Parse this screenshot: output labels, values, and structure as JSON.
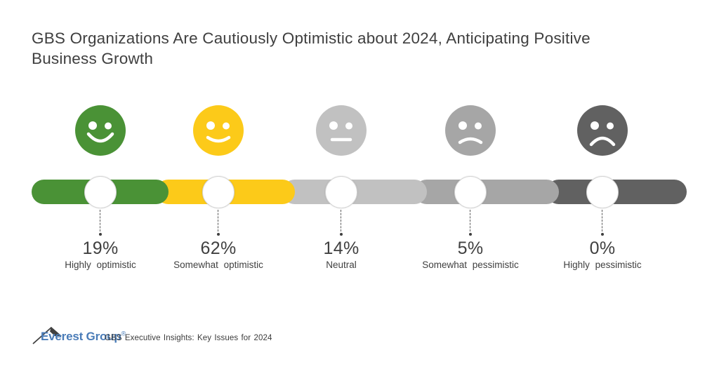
{
  "title": "GBS Organizations Are Cautiously Optimistic about 2024, Anticipating Positive Business Growth",
  "chart_data": {
    "type": "bar",
    "title": "GBS Organizations Are Cautiously Optimistic about 2024, Anticipating Positive Business Growth",
    "categories": [
      "Highly optimistic",
      "Somewhat optimistic",
      "Neutral",
      "Somewhat pessimistic",
      "Highly pessimistic"
    ],
    "values": [
      19,
      62,
      14,
      5,
      0
    ],
    "unit": "%",
    "legend": "none",
    "layout_hint": "five equal sentiment segments on a rounded horizontal scale, face icon above each segment, white marker circle on bar with dashed leader to value",
    "items": [
      {
        "label": "Highly optimistic",
        "value": 19,
        "display": "19%",
        "color": "#4a9236",
        "mouth": "big-smile",
        "icon": "big-smile-face-icon"
      },
      {
        "label": "Somewhat optimistic",
        "value": 62,
        "display": "62%",
        "color": "#fcca19",
        "mouth": "smile",
        "icon": "smile-face-icon"
      },
      {
        "label": "Neutral",
        "value": 14,
        "display": "14%",
        "color": "#c1c1c1",
        "mouth": "flat",
        "icon": "neutral-face-icon"
      },
      {
        "label": "Somewhat pessimistic",
        "value": 5,
        "display": "5%",
        "color": "#a6a6a6",
        "mouth": "frown",
        "icon": "frown-face-icon"
      },
      {
        "label": "Highly pessimistic",
        "value": 0,
        "display": "0%",
        "color": "#616161",
        "mouth": "big-frown",
        "icon": "big-frown-face-icon"
      }
    ]
  },
  "footer": {
    "brand": "Everest Group",
    "registered_mark": "®",
    "source": "GBS Executive Insights: Key Issues for 2024",
    "brand_color": "#4a7cb8"
  }
}
